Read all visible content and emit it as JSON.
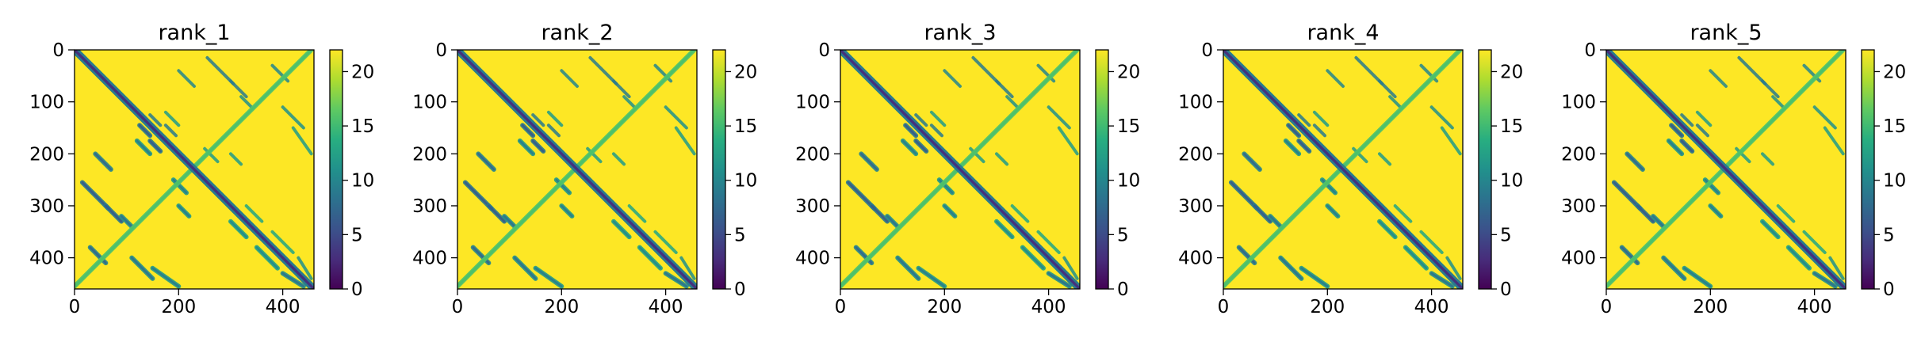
{
  "chart_data": [
    {
      "type": "heatmap",
      "title": "rank_1",
      "matrix_size": 460,
      "xlim": [
        0,
        460
      ],
      "ylim": [
        460,
        0
      ],
      "xticks": [
        0,
        200,
        400
      ],
      "yticks": [
        0,
        100,
        200,
        300,
        400
      ],
      "colorbar": {
        "min": 0,
        "max": 22,
        "ticks": [
          0,
          5,
          10,
          15,
          20
        ]
      },
      "colormap": "viridis",
      "background_value": 22,
      "diagonal_value": 3,
      "features": [
        {
          "start": [
            15,
            255
          ],
          "end": [
            65,
            305
          ],
          "value": 9
        },
        {
          "start": [
            40,
            200
          ],
          "end": [
            70,
            230
          ],
          "value": 10
        },
        {
          "start": [
            60,
            300
          ],
          "end": [
            90,
            330
          ],
          "value": 9
        },
        {
          "start": [
            30,
            380
          ],
          "end": [
            60,
            410
          ],
          "value": 10
        },
        {
          "start": [
            90,
            320
          ],
          "end": [
            110,
            340
          ],
          "value": 11
        },
        {
          "start": [
            145,
            175
          ],
          "end": [
            165,
            195
          ],
          "value": 9
        },
        {
          "start": [
            125,
            145
          ],
          "end": [
            145,
            165
          ],
          "value": 9
        },
        {
          "start": [
            120,
            175
          ],
          "end": [
            145,
            200
          ],
          "value": 12
        },
        {
          "start": [
            110,
            400
          ],
          "end": [
            150,
            440
          ],
          "value": 11
        },
        {
          "start": [
            150,
            420
          ],
          "end": [
            200,
            455
          ],
          "value": 12
        },
        {
          "start": [
            190,
            250
          ],
          "end": [
            215,
            275
          ],
          "value": 12
        },
        {
          "start": [
            200,
            300
          ],
          "end": [
            220,
            320
          ],
          "value": 12
        },
        {
          "start": [
            300,
            330
          ],
          "end": [
            330,
            360
          ],
          "value": 13
        },
        {
          "start": [
            350,
            380
          ],
          "end": [
            390,
            420
          ],
          "value": 13
        },
        {
          "start": [
            400,
            430
          ],
          "end": [
            440,
            455
          ],
          "value": 11
        },
        {
          "start": [
            0,
            455
          ],
          "end": [
            455,
            0
          ],
          "value": 16
        }
      ]
    },
    {
      "type": "heatmap",
      "title": "rank_2",
      "matrix_size": 460,
      "xlim": [
        0,
        460
      ],
      "ylim": [
        460,
        0
      ],
      "xticks": [
        0,
        200,
        400
      ],
      "yticks": [
        0,
        100,
        200,
        300,
        400
      ],
      "colorbar": {
        "min": 0,
        "max": 22,
        "ticks": [
          0,
          5,
          10,
          15,
          20
        ]
      },
      "colormap": "viridis",
      "background_value": 22,
      "diagonal_value": 3,
      "features": [
        {
          "start": [
            15,
            255
          ],
          "end": [
            65,
            305
          ],
          "value": 9
        },
        {
          "start": [
            40,
            200
          ],
          "end": [
            70,
            230
          ],
          "value": 10
        },
        {
          "start": [
            60,
            300
          ],
          "end": [
            90,
            330
          ],
          "value": 9
        },
        {
          "start": [
            30,
            380
          ],
          "end": [
            60,
            410
          ],
          "value": 10
        },
        {
          "start": [
            90,
            320
          ],
          "end": [
            110,
            340
          ],
          "value": 11
        },
        {
          "start": [
            145,
            175
          ],
          "end": [
            165,
            195
          ],
          "value": 9
        },
        {
          "start": [
            125,
            145
          ],
          "end": [
            145,
            165
          ],
          "value": 9
        },
        {
          "start": [
            120,
            175
          ],
          "end": [
            145,
            200
          ],
          "value": 12
        },
        {
          "start": [
            110,
            400
          ],
          "end": [
            150,
            440
          ],
          "value": 11
        },
        {
          "start": [
            150,
            420
          ],
          "end": [
            200,
            455
          ],
          "value": 12
        },
        {
          "start": [
            190,
            250
          ],
          "end": [
            215,
            275
          ],
          "value": 12
        },
        {
          "start": [
            200,
            300
          ],
          "end": [
            220,
            320
          ],
          "value": 12
        },
        {
          "start": [
            300,
            330
          ],
          "end": [
            330,
            360
          ],
          "value": 13
        },
        {
          "start": [
            350,
            380
          ],
          "end": [
            390,
            420
          ],
          "value": 13
        },
        {
          "start": [
            400,
            430
          ],
          "end": [
            440,
            455
          ],
          "value": 11
        },
        {
          "start": [
            0,
            455
          ],
          "end": [
            455,
            0
          ],
          "value": 16
        }
      ]
    },
    {
      "type": "heatmap",
      "title": "rank_3",
      "matrix_size": 460,
      "xlim": [
        0,
        460
      ],
      "ylim": [
        460,
        0
      ],
      "xticks": [
        0,
        200,
        400
      ],
      "yticks": [
        0,
        100,
        200,
        300,
        400
      ],
      "colorbar": {
        "min": 0,
        "max": 22,
        "ticks": [
          0,
          5,
          10,
          15,
          20
        ]
      },
      "colormap": "viridis",
      "background_value": 22,
      "diagonal_value": 3,
      "features": [
        {
          "start": [
            15,
            255
          ],
          "end": [
            65,
            305
          ],
          "value": 9
        },
        {
          "start": [
            40,
            200
          ],
          "end": [
            70,
            230
          ],
          "value": 10
        },
        {
          "start": [
            60,
            300
          ],
          "end": [
            90,
            330
          ],
          "value": 9
        },
        {
          "start": [
            30,
            380
          ],
          "end": [
            60,
            410
          ],
          "value": 10
        },
        {
          "start": [
            90,
            320
          ],
          "end": [
            110,
            340
          ],
          "value": 11
        },
        {
          "start": [
            145,
            175
          ],
          "end": [
            165,
            195
          ],
          "value": 9
        },
        {
          "start": [
            125,
            145
          ],
          "end": [
            145,
            165
          ],
          "value": 9
        },
        {
          "start": [
            120,
            175
          ],
          "end": [
            145,
            200
          ],
          "value": 12
        },
        {
          "start": [
            110,
            400
          ],
          "end": [
            150,
            440
          ],
          "value": 11
        },
        {
          "start": [
            150,
            420
          ],
          "end": [
            200,
            455
          ],
          "value": 12
        },
        {
          "start": [
            190,
            250
          ],
          "end": [
            215,
            275
          ],
          "value": 12
        },
        {
          "start": [
            200,
            300
          ],
          "end": [
            220,
            320
          ],
          "value": 12
        },
        {
          "start": [
            300,
            330
          ],
          "end": [
            330,
            360
          ],
          "value": 13
        },
        {
          "start": [
            350,
            380
          ],
          "end": [
            390,
            420
          ],
          "value": 13
        },
        {
          "start": [
            400,
            430
          ],
          "end": [
            440,
            455
          ],
          "value": 11
        },
        {
          "start": [
            0,
            455
          ],
          "end": [
            455,
            0
          ],
          "value": 16
        }
      ]
    },
    {
      "type": "heatmap",
      "title": "rank_4",
      "matrix_size": 460,
      "xlim": [
        0,
        460
      ],
      "ylim": [
        460,
        0
      ],
      "xticks": [
        0,
        200,
        400
      ],
      "yticks": [
        0,
        100,
        200,
        300,
        400
      ],
      "colorbar": {
        "min": 0,
        "max": 22,
        "ticks": [
          0,
          5,
          10,
          15,
          20
        ]
      },
      "colormap": "viridis",
      "background_value": 22,
      "diagonal_value": 3,
      "features": [
        {
          "start": [
            15,
            255
          ],
          "end": [
            65,
            305
          ],
          "value": 9
        },
        {
          "start": [
            40,
            200
          ],
          "end": [
            70,
            230
          ],
          "value": 10
        },
        {
          "start": [
            60,
            300
          ],
          "end": [
            90,
            330
          ],
          "value": 9
        },
        {
          "start": [
            30,
            380
          ],
          "end": [
            60,
            410
          ],
          "value": 10
        },
        {
          "start": [
            90,
            320
          ],
          "end": [
            110,
            340
          ],
          "value": 11
        },
        {
          "start": [
            145,
            175
          ],
          "end": [
            165,
            195
          ],
          "value": 9
        },
        {
          "start": [
            125,
            145
          ],
          "end": [
            145,
            165
          ],
          "value": 9
        },
        {
          "start": [
            120,
            175
          ],
          "end": [
            145,
            200
          ],
          "value": 12
        },
        {
          "start": [
            110,
            400
          ],
          "end": [
            150,
            440
          ],
          "value": 11
        },
        {
          "start": [
            150,
            420
          ],
          "end": [
            200,
            455
          ],
          "value": 12
        },
        {
          "start": [
            190,
            250
          ],
          "end": [
            215,
            275
          ],
          "value": 12
        },
        {
          "start": [
            200,
            300
          ],
          "end": [
            220,
            320
          ],
          "value": 12
        },
        {
          "start": [
            300,
            330
          ],
          "end": [
            330,
            360
          ],
          "value": 13
        },
        {
          "start": [
            350,
            380
          ],
          "end": [
            390,
            420
          ],
          "value": 13
        },
        {
          "start": [
            400,
            430
          ],
          "end": [
            440,
            455
          ],
          "value": 11
        },
        {
          "start": [
            0,
            455
          ],
          "end": [
            455,
            0
          ],
          "value": 16
        }
      ]
    },
    {
      "type": "heatmap",
      "title": "rank_5",
      "matrix_size": 460,
      "xlim": [
        0,
        460
      ],
      "ylim": [
        460,
        0
      ],
      "xticks": [
        0,
        200,
        400
      ],
      "yticks": [
        0,
        100,
        200,
        300,
        400
      ],
      "colorbar": {
        "min": 0,
        "max": 22,
        "ticks": [
          0,
          5,
          10,
          15,
          20
        ]
      },
      "colormap": "viridis",
      "background_value": 22,
      "diagonal_value": 3,
      "features": [
        {
          "start": [
            15,
            255
          ],
          "end": [
            65,
            305
          ],
          "value": 9
        },
        {
          "start": [
            40,
            200
          ],
          "end": [
            70,
            230
          ],
          "value": 10
        },
        {
          "start": [
            60,
            300
          ],
          "end": [
            90,
            330
          ],
          "value": 9
        },
        {
          "start": [
            30,
            380
          ],
          "end": [
            60,
            410
          ],
          "value": 10
        },
        {
          "start": [
            90,
            320
          ],
          "end": [
            110,
            340
          ],
          "value": 11
        },
        {
          "start": [
            145,
            175
          ],
          "end": [
            165,
            195
          ],
          "value": 9
        },
        {
          "start": [
            125,
            145
          ],
          "end": [
            145,
            165
          ],
          "value": 9
        },
        {
          "start": [
            120,
            175
          ],
          "end": [
            145,
            200
          ],
          "value": 12
        },
        {
          "start": [
            110,
            400
          ],
          "end": [
            150,
            440
          ],
          "value": 11
        },
        {
          "start": [
            150,
            420
          ],
          "end": [
            200,
            455
          ],
          "value": 12
        },
        {
          "start": [
            190,
            250
          ],
          "end": [
            215,
            275
          ],
          "value": 12
        },
        {
          "start": [
            200,
            300
          ],
          "end": [
            220,
            320
          ],
          "value": 12
        },
        {
          "start": [
            300,
            330
          ],
          "end": [
            330,
            360
          ],
          "value": 13
        },
        {
          "start": [
            350,
            380
          ],
          "end": [
            390,
            420
          ],
          "value": 13
        },
        {
          "start": [
            400,
            430
          ],
          "end": [
            440,
            455
          ],
          "value": 11
        },
        {
          "start": [
            0,
            455
          ],
          "end": [
            455,
            0
          ],
          "value": 16
        }
      ]
    }
  ]
}
